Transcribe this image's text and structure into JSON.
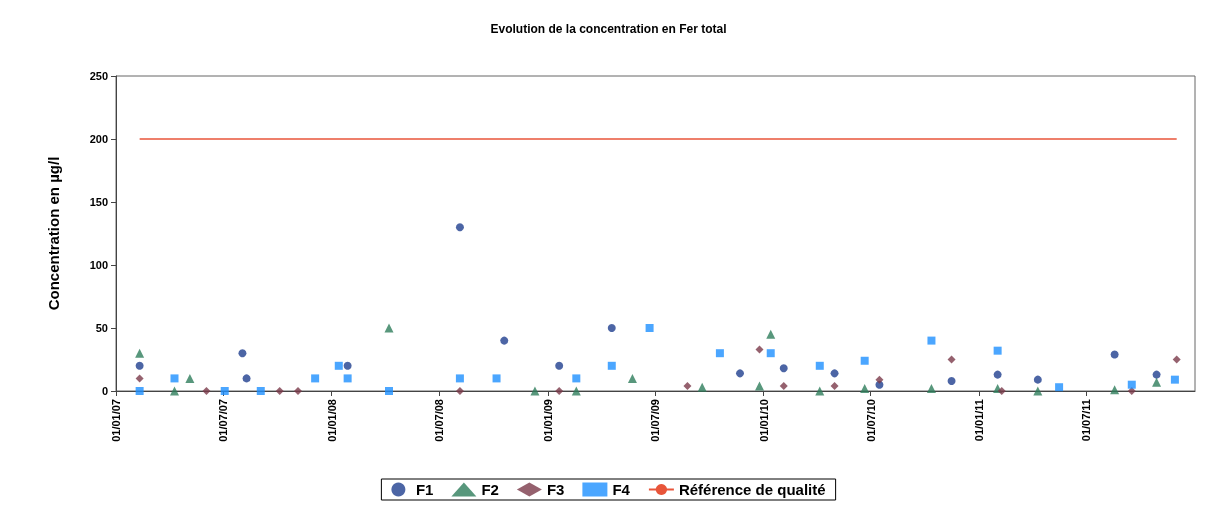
{
  "chart_data": {
    "type": "scatter",
    "title": "Evolution de la concentration en Fer total",
    "ylabel": "Concentration en µg/l",
    "xlim": [
      "2007-01-01",
      "2012-01-01"
    ],
    "xticks": [
      {
        "value": "2007-01-01",
        "label": "01/01/07"
      },
      {
        "value": "2007-07-01",
        "label": "01/07/07"
      },
      {
        "value": "2008-01-01",
        "label": "01/01/08"
      },
      {
        "value": "2008-07-01",
        "label": "01/07/08"
      },
      {
        "value": "2009-01-01",
        "label": "01/01/09"
      },
      {
        "value": "2009-07-01",
        "label": "01/07/09"
      },
      {
        "value": "2010-01-01",
        "label": "01/01/10"
      },
      {
        "value": "2010-07-01",
        "label": "01/07/10"
      },
      {
        "value": "2011-01-01",
        "label": "01/01/11"
      },
      {
        "value": "2011-07-01",
        "label": "01/07/11"
      }
    ],
    "ylim": [
      0,
      250
    ],
    "yticks": [
      0,
      50,
      100,
      150,
      200,
      250
    ],
    "grid": false,
    "legend": "bottom",
    "series": [
      {
        "name": "F1",
        "color": "#1f3f8f",
        "marker": "circle",
        "x": [
          "2007-02-10",
          "2007-08-03",
          "2007-08-10",
          "2008-01-28",
          "2008-08-05",
          "2008-10-19",
          "2009-01-20",
          "2009-04-19",
          "2009-11-22",
          "2010-02-04",
          "2010-05-01",
          "2010-07-16",
          "2010-11-15",
          "2011-02-01",
          "2011-04-10",
          "2011-08-18",
          "2011-10-28"
        ],
        "values": [
          20,
          30,
          10,
          20,
          130,
          40,
          20,
          50,
          14,
          18,
          14,
          5,
          8,
          13,
          9,
          29,
          13
        ]
      },
      {
        "name": "F2",
        "color": "#2e7d5b",
        "marker": "triangle",
        "x": [
          "2007-02-10",
          "2007-04-10",
          "2007-05-06",
          "2008-04-07",
          "2008-12-10",
          "2009-02-18",
          "2009-05-24",
          "2009-09-19",
          "2009-12-25",
          "2010-01-13",
          "2010-04-06",
          "2010-06-21",
          "2010-10-12",
          "2011-02-01",
          "2011-04-10",
          "2011-08-18",
          "2011-10-28"
        ],
        "values": [
          30,
          0,
          10,
          50,
          0,
          0,
          10,
          3,
          4,
          45,
          0,
          2,
          2,
          2,
          0,
          1,
          7
        ]
      },
      {
        "name": "F3",
        "color": "#7b3a4a",
        "marker": "diamond",
        "x": [
          "2007-02-10",
          "2007-06-03",
          "2007-10-05",
          "2007-11-05",
          "2008-08-05",
          "2009-01-20",
          "2009-08-25",
          "2009-12-25",
          "2010-02-04",
          "2010-05-01",
          "2010-07-16",
          "2010-11-15",
          "2011-02-08",
          "2011-09-16",
          "2011-12-01"
        ],
        "values": [
          10,
          0,
          0,
          0,
          0,
          0,
          4,
          33,
          4,
          4,
          9,
          25,
          0,
          0,
          25
        ]
      },
      {
        "name": "F4",
        "color": "#1e90ff",
        "marker": "square",
        "x": [
          "2007-02-10",
          "2007-04-10",
          "2007-07-04",
          "2007-09-03",
          "2007-12-04",
          "2008-01-13",
          "2008-01-28",
          "2008-04-07",
          "2008-08-05",
          "2008-10-06",
          "2009-02-18",
          "2009-04-19",
          "2009-06-22",
          "2009-10-19",
          "2010-01-13",
          "2010-04-06",
          "2010-06-21",
          "2010-10-12",
          "2011-02-01",
          "2011-05-16",
          "2011-09-16",
          "2011-11-28"
        ],
        "values": [
          0,
          10,
          0,
          0,
          10,
          20,
          10,
          0,
          10,
          10,
          10,
          20,
          50,
          30,
          30,
          20,
          24,
          40,
          32,
          3,
          5,
          9
        ]
      },
      {
        "name": "Référence de qualité",
        "type": "line",
        "color": "#e8553a",
        "marker": "none",
        "x": [
          "2007-02-10",
          "2011-12-01"
        ],
        "values": [
          200,
          200
        ]
      }
    ]
  }
}
